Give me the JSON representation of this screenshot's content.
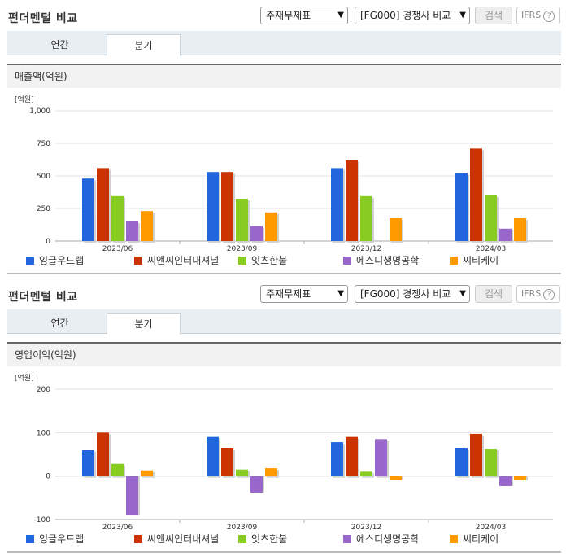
{
  "panels": [
    {
      "title": "펀더멘털 비교",
      "select1": "주재무제표",
      "select2": "[FG000] 경쟁사 비교",
      "search_label": "검색",
      "ifrs_label": "IFRS",
      "ifrs_help": "?",
      "tabs": [
        "연간",
        "분기"
      ],
      "active_tab": "분기",
      "chart_title": "매출액(억원)"
    },
    {
      "title": "펀더멘털 비교",
      "select1": "주재무제표",
      "select2": "[FG000] 경쟁사 비교",
      "search_label": "검색",
      "ifrs_label": "IFRS",
      "ifrs_help": "?",
      "tabs": [
        "연간",
        "분기"
      ],
      "active_tab": "분기",
      "chart_title": "영업이익(억원)"
    }
  ],
  "colors": {
    "잉글우드랩": "#2266dd",
    "씨앤씨인터내셔널": "#cc3300",
    "잇츠한불": "#88cc22",
    "에스디생명공학": "#9966cc",
    "씨티케이": "#ff9900"
  },
  "chart_data": [
    {
      "type": "bar",
      "title": "매출액(억원)",
      "unit_label": "[억원]",
      "categories": [
        "2023/06",
        "2023/09",
        "2023/12",
        "2024/03"
      ],
      "ylim": [
        0,
        1000
      ],
      "yticks": [
        "0",
        "250",
        "500",
        "750",
        "1,000"
      ],
      "ytick_values": [
        0,
        250,
        500,
        750,
        1000
      ],
      "series": [
        {
          "name": "잉글우드랩",
          "values": [
            480,
            530,
            560,
            520
          ]
        },
        {
          "name": "씨앤씨인터내셔널",
          "values": [
            560,
            530,
            620,
            710
          ]
        },
        {
          "name": "잇츠한불",
          "values": [
            345,
            325,
            345,
            350
          ]
        },
        {
          "name": "에스디생명공학",
          "values": [
            150,
            115,
            0,
            95
          ]
        },
        {
          "name": "씨티케이",
          "values": [
            230,
            220,
            175,
            175
          ]
        }
      ]
    },
    {
      "type": "bar",
      "title": "영업이익(억원)",
      "unit_label": "[억원]",
      "categories": [
        "2023/06",
        "2023/09",
        "2023/12",
        "2024/03"
      ],
      "ylim": [
        -100,
        200
      ],
      "yticks": [
        "-100",
        "0",
        "100",
        "200"
      ],
      "ytick_values": [
        -100,
        0,
        100,
        200
      ],
      "series": [
        {
          "name": "잉글우드랩",
          "values": [
            60,
            90,
            78,
            65
          ]
        },
        {
          "name": "씨앤씨인터내셔널",
          "values": [
            100,
            65,
            90,
            97
          ]
        },
        {
          "name": "잇츠한불",
          "values": [
            28,
            15,
            10,
            63
          ]
        },
        {
          "name": "에스디생명공학",
          "values": [
            -90,
            -38,
            85,
            -23
          ]
        },
        {
          "name": "씨티케이",
          "values": [
            13,
            18,
            -10,
            -10
          ]
        }
      ]
    }
  ]
}
